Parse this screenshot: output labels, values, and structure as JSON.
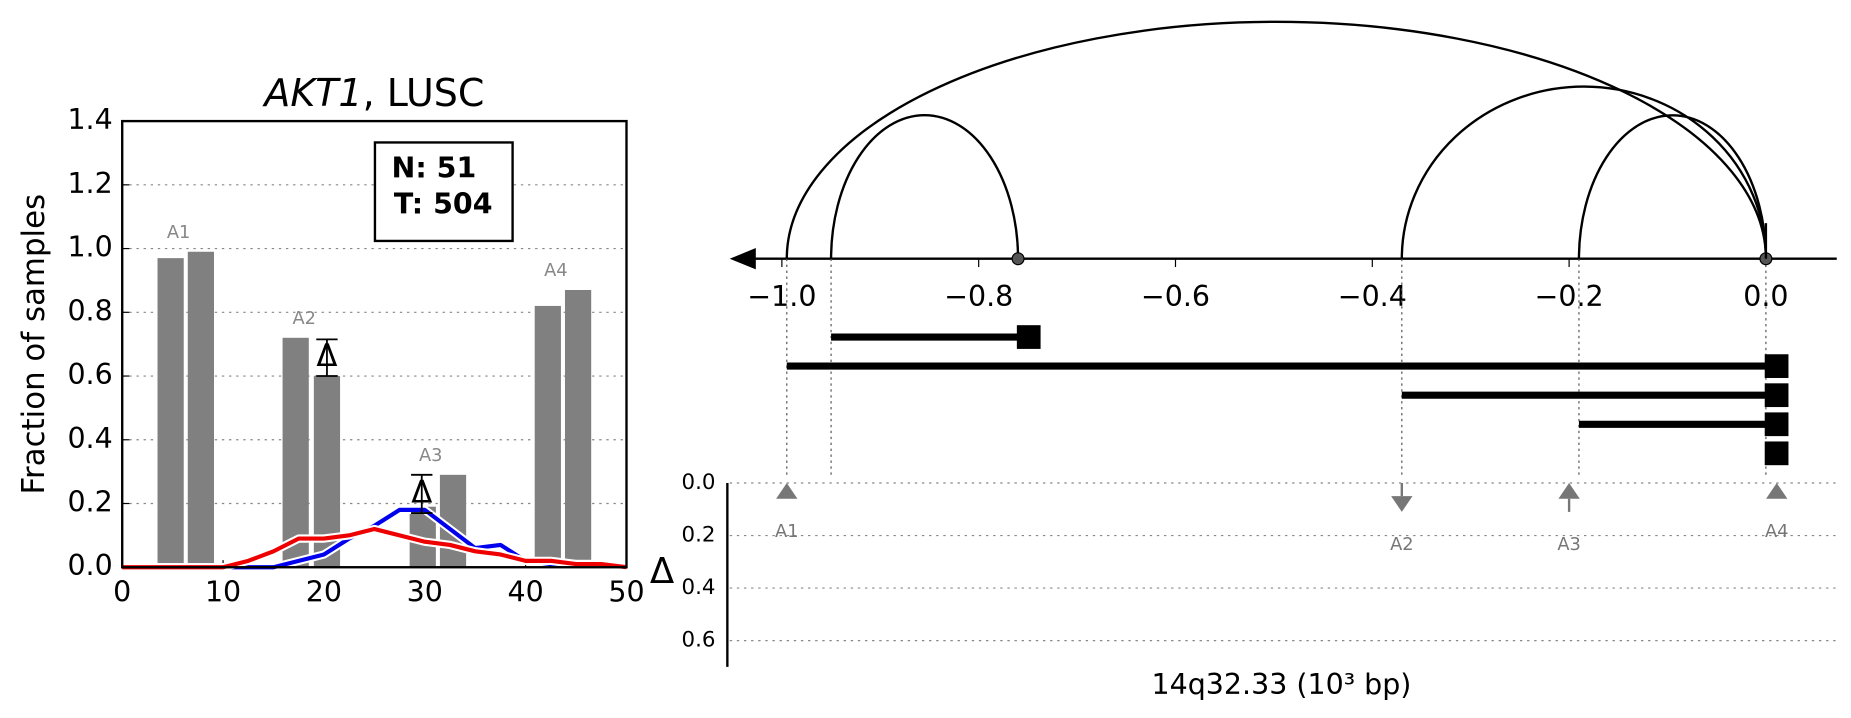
{
  "chart_data": [
    {
      "type": "bar",
      "title_gene": "AKT1",
      "title_rest": ", LUSC",
      "ylabel": "Fraction of samples",
      "xlim": [
        0,
        50
      ],
      "xticks": [
        0,
        10,
        20,
        30,
        40,
        50
      ],
      "ylim": [
        0,
        1.4
      ],
      "yticks": [
        {
          "value": 0,
          "label": "0.0"
        },
        {
          "value": 0.2,
          "label": "0.2"
        },
        {
          "value": 0.4,
          "label": "0.4"
        },
        {
          "value": 0.6,
          "label": "0.6"
        },
        {
          "value": 0.8,
          "label": "0.8"
        },
        {
          "value": 1.0,
          "label": "1.0"
        },
        {
          "value": 1.2,
          "label": "1.2"
        },
        {
          "value": 1.4,
          "label": "1.4"
        }
      ],
      "grid": true,
      "bar_color": "#808080",
      "bars": {
        "x": [
          4.8,
          7.8,
          17.2,
          20.3,
          29.8,
          32.8,
          42.2,
          45.2
        ],
        "values": [
          0.97,
          0.99,
          0.72,
          0.6,
          0.19,
          0.29,
          0.82,
          0.87
        ]
      },
      "bar_labels": [
        "A1",
        null,
        "A2",
        null,
        "A3",
        null,
        "A4",
        null
      ],
      "annotation": [
        "N: 51",
        "T: 504"
      ],
      "delta_symbol": "Δ",
      "deltas": [
        {
          "x": 20.3,
          "low": 0.6,
          "high": 0.715
        },
        {
          "x": 29.7,
          "low": 0.17,
          "high": 0.29
        }
      ],
      "line_x": [
        0,
        2.5,
        5,
        7.5,
        10,
        12.5,
        15,
        17.5,
        20,
        22.5,
        25,
        27.5,
        30,
        32.5,
        35,
        37.5,
        40,
        42.5,
        45,
        47.5,
        50
      ],
      "series": [
        {
          "color": "#0000ee",
          "values": [
            0,
            0,
            0,
            0,
            0,
            0,
            0,
            0.02,
            0.04,
            0.09,
            0.13,
            0.18,
            0.18,
            0.12,
            0.06,
            0.07,
            0.02,
            0.01,
            0.01,
            0.01,
            0
          ]
        },
        {
          "color": "#ee0000",
          "values": [
            0,
            0,
            0,
            0,
            0,
            0.02,
            0.05,
            0.09,
            0.09,
            0.1,
            0.12,
            0.1,
            0.08,
            0.07,
            0.05,
            0.04,
            0.02,
            0.02,
            0.01,
            0.01,
            0
          ]
        }
      ]
    },
    {
      "type": "arc",
      "xlabel": "14q32.33 (10³ bp)",
      "xlim": [
        -1.053,
        0.072
      ],
      "xticks": [
        {
          "value": -1.0,
          "label": "−1.0"
        },
        {
          "value": -0.8,
          "label": "−0.8"
        },
        {
          "value": -0.6,
          "label": "−0.6"
        },
        {
          "value": -0.4,
          "label": "−0.4"
        },
        {
          "value": -0.2,
          "label": "−0.2"
        },
        {
          "value": 0.0,
          "label": "0.0"
        }
      ],
      "arcs": [
        {
          "start": -0.95,
          "end": -0.76
        },
        {
          "start": -0.995,
          "end": 0.0
        },
        {
          "start": -0.37,
          "end": 0.0
        },
        {
          "start": -0.19,
          "end": 0.0
        }
      ],
      "breakpoints": [
        -0.76,
        0.0
      ],
      "guides": [
        -0.995,
        -0.95,
        -0.37,
        -0.19,
        0.0
      ],
      "segments": [
        {
          "start": -0.95,
          "end": -0.76
        },
        {
          "start": -0.995,
          "end": 0.0
        },
        {
          "start": -0.37,
          "end": 0.0
        },
        {
          "start": -0.19,
          "end": 0.0
        },
        {
          "start": 0.0,
          "end": 0.0
        }
      ],
      "delta_label": "Δ",
      "ylim": [
        0,
        0.7
      ],
      "yticks": [
        {
          "value": 0,
          "label": "0.0"
        },
        {
          "value": 0.2,
          "label": "0.2"
        },
        {
          "value": 0.4,
          "label": "0.4"
        },
        {
          "value": 0.6,
          "label": "0.6"
        }
      ],
      "markers": [
        {
          "label": "A1",
          "x": -0.995,
          "value": 0.06,
          "direction": "up"
        },
        {
          "label": "A2",
          "x": -0.37,
          "value": 0.11,
          "direction": "down"
        },
        {
          "label": "A3",
          "x": -0.2,
          "value": 0.11,
          "direction": "up"
        },
        {
          "label": "A4",
          "x": 0.011,
          "value": 0.06,
          "direction": "up"
        }
      ]
    }
  ]
}
